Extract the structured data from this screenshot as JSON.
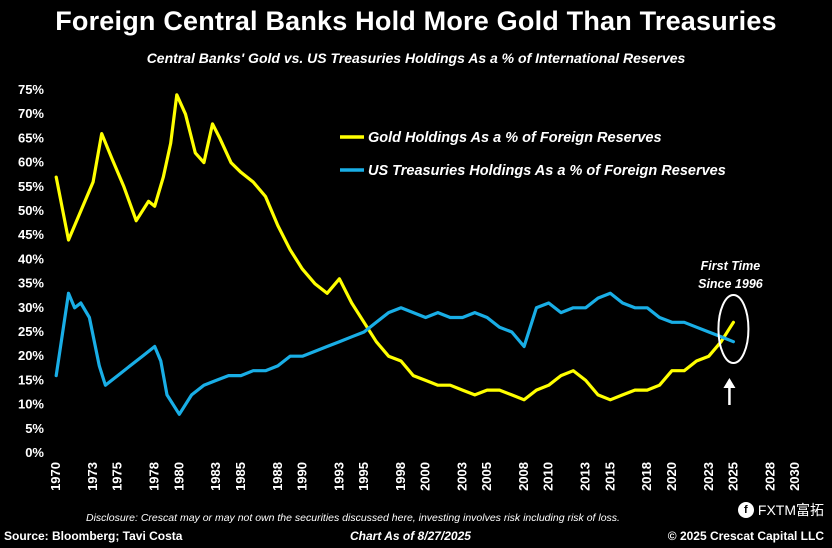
{
  "chart_data": {
    "type": "line",
    "title": "Foreign Central Banks Hold More Gold Than Treasuries",
    "subtitle": "Central Banks' Gold vs. US Treasuries Holdings As a % of International Reserves",
    "xlabel": "",
    "ylabel": "",
    "xlim": [
      1969.5,
      2030
    ],
    "ylim": [
      0,
      75
    ],
    "x_ticks": [
      "1970",
      "1973",
      "1975",
      "1978",
      "1980",
      "1983",
      "1985",
      "1988",
      "1990",
      "1993",
      "1995",
      "1998",
      "2000",
      "2003",
      "2005",
      "2008",
      "2010",
      "2013",
      "2015",
      "2018",
      "2020",
      "2023",
      "2025",
      "2028",
      "2030"
    ],
    "y_ticks": [
      "0%",
      "5%",
      "10%",
      "15%",
      "20%",
      "25%",
      "30%",
      "35%",
      "40%",
      "45%",
      "50%",
      "55%",
      "60%",
      "65%",
      "70%",
      "75%"
    ],
    "grid": false,
    "legend_position": "top-right",
    "series": [
      {
        "name": "Gold Holdings As a % of Foreign Reserves",
        "color": "#ffff00",
        "x": [
          1970,
          1971,
          1972,
          1973,
          1973.7,
          1974.5,
          1975.5,
          1976.5,
          1977.5,
          1978,
          1978.7,
          1979.3,
          1979.8,
          1980.5,
          1981.3,
          1982,
          1982.7,
          1983.3,
          1984.2,
          1985,
          1986,
          1987,
          1988,
          1989,
          1990,
          1991,
          1992,
          1993,
          1994,
          1995,
          1996,
          1997,
          1998,
          1999,
          2000,
          2001,
          2002,
          2003,
          2004,
          2005,
          2006,
          2007,
          2008,
          2009,
          2010,
          2011,
          2012,
          2013,
          2014,
          2015,
          2016,
          2017,
          2018,
          2019,
          2020,
          2021,
          2022,
          2023,
          2024,
          2025
        ],
        "values": [
          57,
          44,
          50,
          56,
          66,
          61,
          55,
          48,
          52,
          51,
          57,
          64,
          74,
          70,
          62,
          60,
          68,
          65,
          60,
          58,
          56,
          53,
          47,
          42,
          38,
          35,
          33,
          36,
          31,
          27,
          23,
          20,
          19,
          16,
          15,
          14,
          14,
          13,
          12,
          13,
          13,
          12,
          11,
          13,
          14,
          16,
          17,
          15,
          12,
          11,
          12,
          13,
          13,
          14,
          17,
          17,
          19,
          20,
          23,
          27
        ]
      },
      {
        "name": "US Treasuries Holdings As a % of Foreign Reserves",
        "color": "#19aee6",
        "x": [
          1970,
          1971,
          1971.5,
          1972,
          1972.7,
          1973.5,
          1974,
          1975,
          1976,
          1977,
          1978,
          1978.5,
          1979,
          1980,
          1981,
          1982,
          1983,
          1984,
          1985,
          1986,
          1987,
          1988,
          1989,
          1990,
          1991,
          1992,
          1993,
          1994,
          1995,
          1996,
          1997,
          1998,
          1999,
          2000,
          2001,
          2002,
          2003,
          2004,
          2005,
          2006,
          2007,
          2008,
          2009,
          2010,
          2011,
          2012,
          2013,
          2014,
          2015,
          2016,
          2017,
          2018,
          2019,
          2020,
          2021,
          2022,
          2023,
          2024,
          2025
        ],
        "values": [
          16,
          33,
          30,
          31,
          28,
          18,
          14,
          16,
          18,
          20,
          22,
          19,
          12,
          8,
          12,
          14,
          15,
          16,
          16,
          17,
          17,
          18,
          20,
          20,
          21,
          22,
          23,
          24,
          25,
          27,
          29,
          30,
          29,
          28,
          29,
          28,
          28,
          29,
          28,
          26,
          25,
          22,
          30,
          31,
          29,
          30,
          30,
          32,
          33,
          31,
          30,
          30,
          28,
          27,
          27,
          26,
          25,
          24,
          23
        ]
      }
    ],
    "annotations": [
      {
        "text_line1": "First Time",
        "text_line2": "Since 1996",
        "x": 2025,
        "y": 25,
        "shape": "ellipse with up arrow"
      }
    ]
  },
  "footer": {
    "disclosure": "Disclosure: Crescat may or may not own the securities discussed here, investing involves risk including risk of loss.",
    "source": "Source: Bloomberg; Tavi Costa",
    "as_of": "Chart As of 8/27/2025",
    "copyright": "© 2025 Crescat Capital LLC"
  },
  "watermark": {
    "icon": "fxtm-logo-icon",
    "text": "FXTM富拓"
  }
}
